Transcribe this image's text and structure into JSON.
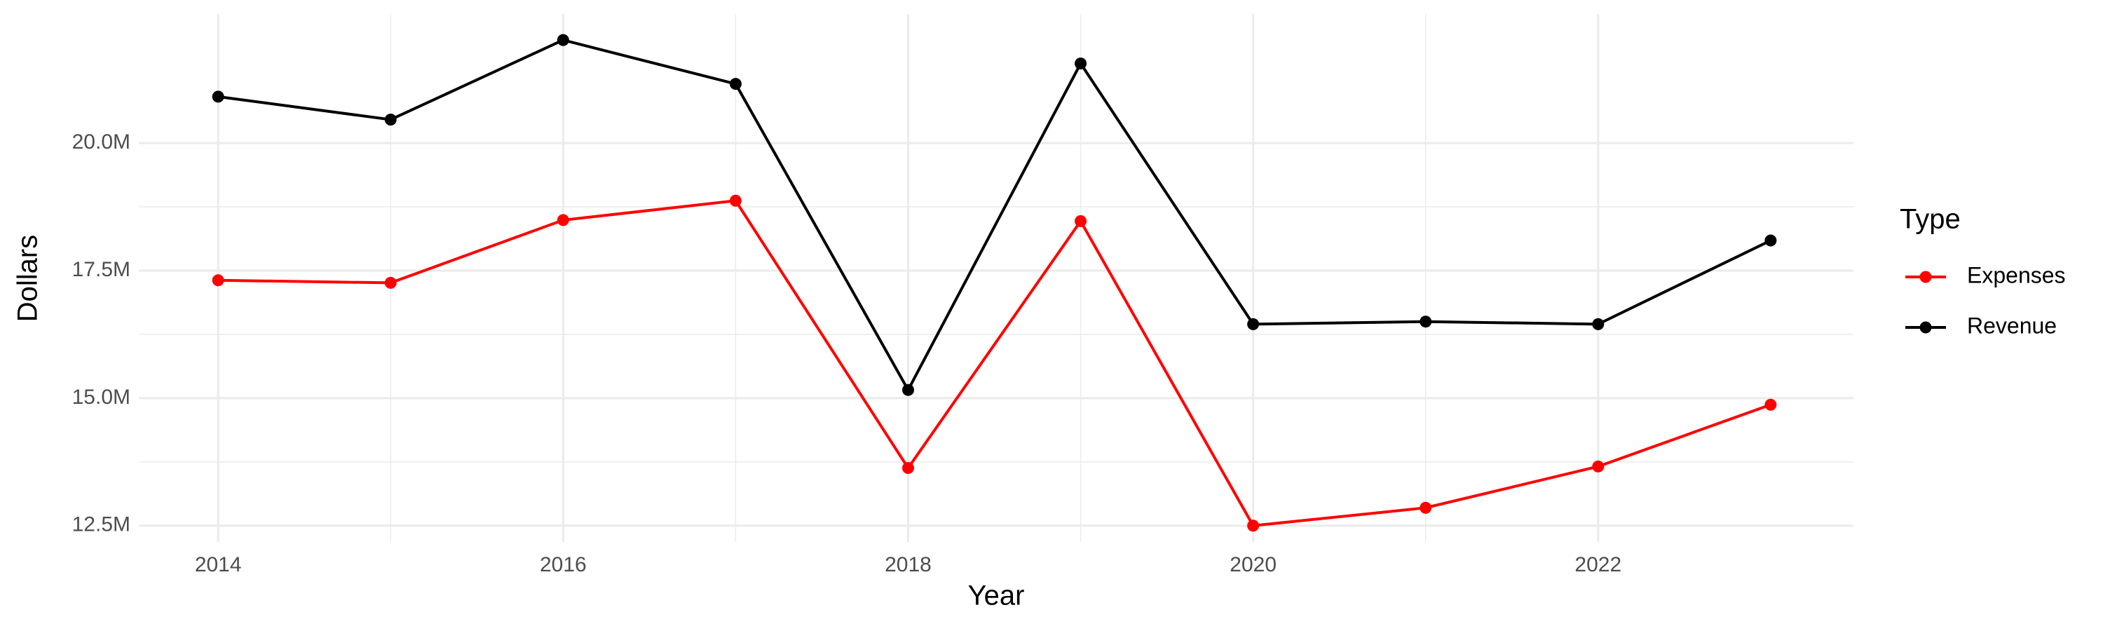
{
  "chart_data": {
    "type": "line",
    "x_label": "Year",
    "y_label": "Dollars",
    "legend_title": "Type",
    "legend_position": "right",
    "grid": true,
    "x": [
      2014,
      2015,
      2016,
      2017,
      2018,
      2019,
      2020,
      2021,
      2022,
      2023
    ],
    "series": [
      {
        "name": "Expenses",
        "color": "#ff0000",
        "values": [
          17310000,
          17260000,
          18490000,
          18870000,
          13630000,
          18470000,
          12500000,
          12850000,
          13660000,
          14870000
        ]
      },
      {
        "name": "Revenue",
        "color": "#000000",
        "values": [
          20910000,
          20460000,
          22020000,
          21160000,
          15160000,
          21560000,
          16450000,
          16500000,
          16450000,
          18090000
        ]
      }
    ],
    "xlim": [
      2013.54,
      2023.48
    ],
    "xticks": [
      2014,
      2016,
      2018,
      2020,
      2022
    ],
    "ylim": [
      12180000,
      22530000
    ],
    "yticks": [
      {
        "value": 12500000,
        "label": "12.5M"
      },
      {
        "value": 15000000,
        "label": "15.0M"
      },
      {
        "value": 17500000,
        "label": "17.5M"
      },
      {
        "value": 20000000,
        "label": "20.0M"
      }
    ]
  }
}
